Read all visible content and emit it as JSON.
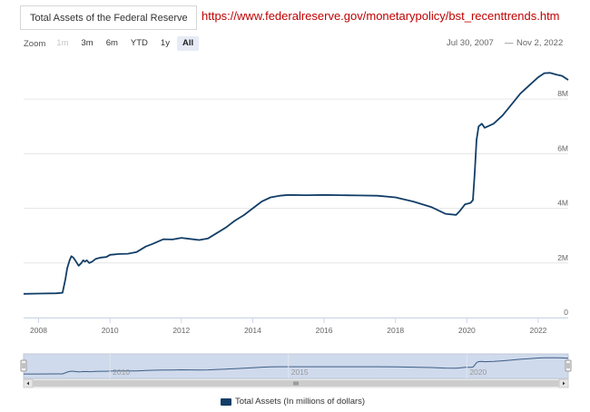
{
  "selector": {
    "value": "Total Assets of the Federal Reserve"
  },
  "source_url": "https://www.federalreserve.gov/monetarypolicy/bst_recenttrends.htm",
  "zoom": {
    "label": "Zoom",
    "buttons": [
      {
        "id": "1m",
        "label": "1m",
        "state": "disabled"
      },
      {
        "id": "3m",
        "label": "3m",
        "state": "normal"
      },
      {
        "id": "6m",
        "label": "6m",
        "state": "normal"
      },
      {
        "id": "ytd",
        "label": "YTD",
        "state": "normal"
      },
      {
        "id": "1y",
        "label": "1y",
        "state": "normal"
      },
      {
        "id": "all",
        "label": "All",
        "state": "active"
      }
    ]
  },
  "range": {
    "from": "Jul 30, 2007",
    "separator": "—",
    "to": "Nov 2, 2022"
  },
  "colors": {
    "series": "#123e67",
    "navigator_fill": "#cfdaec",
    "navigator_line": "#3d5d86",
    "grid": "#e6e6e6"
  },
  "chart_data": {
    "type": "line",
    "x_unit": "year",
    "xlim": [
      2007.58,
      2022.84
    ],
    "ylim": [
      0,
      9500000
    ],
    "x_ticks": [
      2008,
      2010,
      2012,
      2014,
      2016,
      2018,
      2020,
      2022
    ],
    "y_ticks": [
      {
        "value": 0,
        "label": "0"
      },
      {
        "value": 2000000,
        "label": "2M"
      },
      {
        "value": 4000000,
        "label": "4M"
      },
      {
        "value": 6000000,
        "label": "6M"
      },
      {
        "value": 8000000,
        "label": "8M"
      }
    ],
    "grid": true,
    "legend": {
      "position": "bottom-center"
    },
    "navigator_labels": [
      "2010",
      "2015",
      "2020"
    ],
    "series": [
      {
        "name": "Total Assets (In millions of dollars)",
        "x": [
          2007.58,
          2008.0,
          2008.5,
          2008.67,
          2008.75,
          2008.8,
          2008.87,
          2008.92,
          2008.97,
          2009.05,
          2009.12,
          2009.2,
          2009.25,
          2009.3,
          2009.35,
          2009.42,
          2009.5,
          2009.6,
          2009.75,
          2009.9,
          2010.0,
          2010.25,
          2010.5,
          2010.75,
          2011.0,
          2011.2,
          2011.5,
          2011.75,
          2012.0,
          2012.25,
          2012.5,
          2012.75,
          2013.0,
          2013.25,
          2013.5,
          2013.75,
          2014.0,
          2014.25,
          2014.5,
          2014.75,
          2015.0,
          2015.5,
          2016.0,
          2016.5,
          2017.0,
          2017.5,
          2018.0,
          2018.5,
          2019.0,
          2019.4,
          2019.7,
          2019.8,
          2019.95,
          2020.1,
          2020.17,
          2020.22,
          2020.27,
          2020.33,
          2020.42,
          2020.5,
          2020.75,
          2021.0,
          2021.25,
          2021.5,
          2021.75,
          2022.0,
          2022.17,
          2022.33,
          2022.5,
          2022.67,
          2022.84
        ],
        "y": [
          870000,
          880000,
          890000,
          910000,
          1400000,
          1800000,
          2100000,
          2250000,
          2200000,
          2050000,
          1900000,
          2000000,
          2100000,
          2050000,
          2100000,
          2000000,
          2050000,
          2150000,
          2200000,
          2220000,
          2300000,
          2330000,
          2340000,
          2400000,
          2600000,
          2700000,
          2870000,
          2860000,
          2920000,
          2880000,
          2840000,
          2900000,
          3100000,
          3300000,
          3550000,
          3750000,
          4000000,
          4250000,
          4400000,
          4460000,
          4490000,
          4480000,
          4490000,
          4480000,
          4470000,
          4460000,
          4400000,
          4250000,
          4050000,
          3800000,
          3760000,
          3900000,
          4150000,
          4200000,
          4300000,
          5300000,
          6500000,
          7000000,
          7100000,
          6950000,
          7100000,
          7400000,
          7800000,
          8200000,
          8500000,
          8800000,
          8950000,
          8960000,
          8900000,
          8850000,
          8700000
        ]
      }
    ]
  }
}
